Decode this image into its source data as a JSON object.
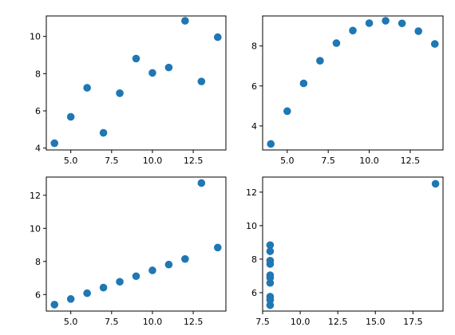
{
  "figure": {
    "marker_color": "#1f77b4",
    "axis_color": "#000000",
    "background": "#ffffff"
  },
  "chart_data": [
    {
      "type": "scatter",
      "position": "top-left",
      "title": "",
      "xlabel": "",
      "ylabel": "",
      "grid": false,
      "xlim": [
        3.5,
        14.5
      ],
      "ylim": [
        3.9,
        11.1
      ],
      "xticks": [
        5.0,
        7.5,
        10.0,
        12.5
      ],
      "xtick_labels": [
        "5.0",
        "7.5",
        "10.0",
        "12.5"
      ],
      "yticks": [
        4,
        6,
        8,
        10
      ],
      "ytick_labels": [
        "4",
        "6",
        "8",
        "10"
      ],
      "x": [
        10,
        8,
        13,
        9,
        11,
        14,
        6,
        4,
        12,
        7,
        5
      ],
      "y": [
        8.04,
        6.95,
        7.58,
        8.81,
        8.33,
        9.96,
        7.24,
        4.26,
        10.84,
        4.82,
        5.68
      ]
    },
    {
      "type": "scatter",
      "position": "top-right",
      "title": "",
      "xlabel": "",
      "ylabel": "",
      "grid": false,
      "xlim": [
        3.5,
        14.5
      ],
      "ylim": [
        2.8,
        9.5
      ],
      "xticks": [
        5.0,
        7.5,
        10.0,
        12.5
      ],
      "xtick_labels": [
        "5.0",
        "7.5",
        "10.0",
        "12.5"
      ],
      "yticks": [
        4,
        6,
        8
      ],
      "ytick_labels": [
        "4",
        "6",
        "8"
      ],
      "x": [
        10,
        8,
        13,
        9,
        11,
        14,
        6,
        4,
        12,
        7,
        5
      ],
      "y": [
        9.14,
        8.14,
        8.74,
        8.77,
        9.26,
        8.1,
        6.13,
        3.1,
        9.13,
        7.26,
        4.74
      ]
    },
    {
      "type": "scatter",
      "position": "bottom-left",
      "title": "",
      "xlabel": "",
      "ylabel": "",
      "grid": false,
      "xlim": [
        3.5,
        14.5
      ],
      "ylim": [
        5.0,
        13.1
      ],
      "xticks": [
        5.0,
        7.5,
        10.0,
        12.5
      ],
      "xtick_labels": [
        "5.0",
        "7.5",
        "10.0",
        "12.5"
      ],
      "yticks": [
        6,
        8,
        10,
        12
      ],
      "ytick_labels": [
        "6",
        "8",
        "10",
        "12"
      ],
      "x": [
        10,
        8,
        13,
        9,
        11,
        14,
        6,
        4,
        12,
        7,
        5
      ],
      "y": [
        7.46,
        6.77,
        12.74,
        7.11,
        7.81,
        8.84,
        6.08,
        5.39,
        8.15,
        6.42,
        5.73
      ]
    },
    {
      "type": "scatter",
      "position": "bottom-right",
      "title": "",
      "xlabel": "",
      "ylabel": "",
      "grid": false,
      "xlim": [
        7.5,
        19.5
      ],
      "ylim": [
        4.9,
        12.9
      ],
      "xticks": [
        7.5,
        10.0,
        12.5,
        15.0,
        17.5
      ],
      "xtick_labels": [
        "7.5",
        "10.0",
        "12.5",
        "15.0",
        "17.5"
      ],
      "yticks": [
        6,
        8,
        10,
        12
      ],
      "ytick_labels": [
        "6",
        "8",
        "10",
        "12"
      ],
      "x": [
        8,
        8,
        8,
        8,
        8,
        8,
        8,
        19,
        8,
        8,
        8
      ],
      "y": [
        6.58,
        5.76,
        7.71,
        8.84,
        8.47,
        7.04,
        5.25,
        12.5,
        5.56,
        7.91,
        6.89
      ]
    }
  ]
}
